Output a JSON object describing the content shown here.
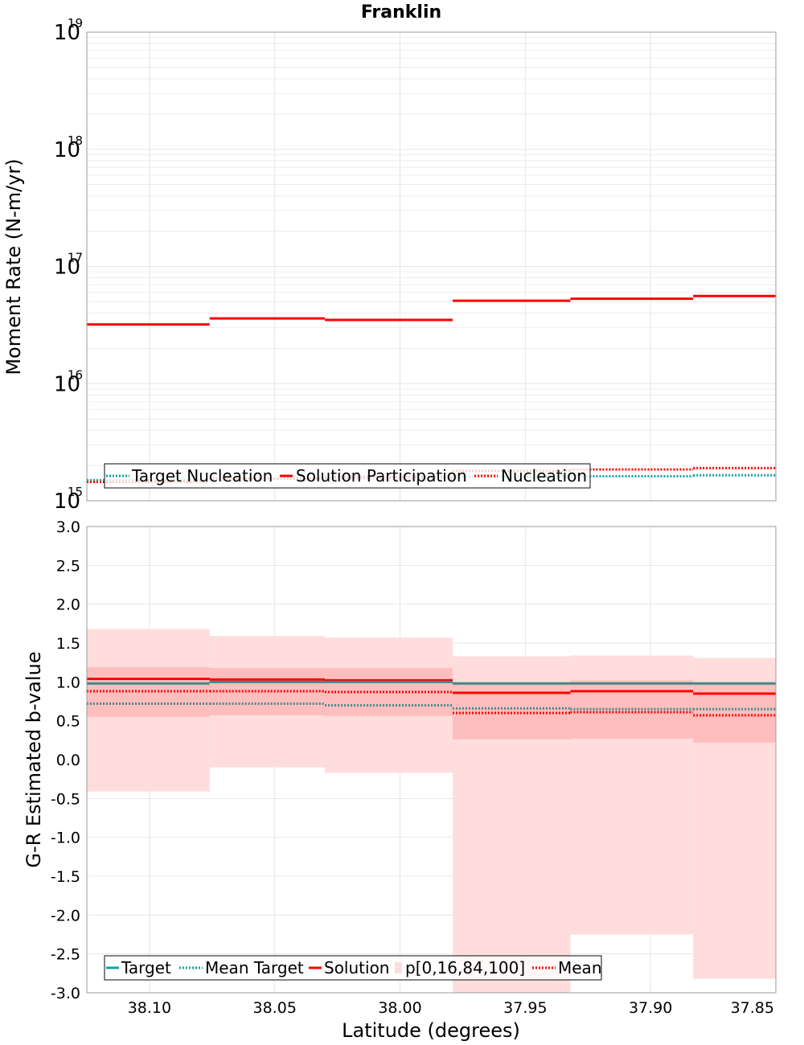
{
  "colors": {
    "target": "#14a0a0",
    "target_line": "#3f8a8a",
    "solution": "#ff0000",
    "band_outer": "#ffdddd",
    "band_inner": "#ffbebe",
    "grid": "#e6e6e6"
  },
  "chart_data": [
    {
      "type": "line",
      "title": "Franklin",
      "ylabel": "Moment Rate (N-m/yr)",
      "yscale": "log",
      "ylim": [
        1000000000000000.0,
        1e+19
      ],
      "xlim": [
        38.125,
        37.85
      ],
      "ytick_bases": [
        "10",
        "10",
        "10",
        "10",
        "10"
      ],
      "ytick_exps": [
        "15",
        "16",
        "17",
        "18",
        "19"
      ],
      "x_edges": [
        38.125,
        38.076,
        38.03,
        37.979,
        37.932,
        37.883,
        37.85
      ],
      "series": [
        {
          "name": "Solution Participation",
          "values": [
            3.2e+16,
            3.6e+16,
            3.5e+16,
            5.1e+16,
            5.3e+16,
            5.6e+16
          ]
        },
        {
          "name": "Nucleation",
          "values": [
            1450000000000000.0,
            1550000000000000.0,
            1600000000000000.0,
            1800000000000000.0,
            1850000000000000.0,
            1900000000000000.0
          ]
        },
        {
          "name": "Target Nucleation",
          "values": [
            1500000000000000.0,
            1550000000000000.0,
            1550000000000000.0,
            1600000000000000.0,
            1620000000000000.0,
            1650000000000000.0
          ]
        }
      ],
      "legend": [
        "Target Nucleation",
        "Solution Participation",
        "Nucleation"
      ]
    },
    {
      "type": "line",
      "ylabel": "G-R Estimated b-value",
      "xlabel": "Latitude (degrees)",
      "ylim": [
        -3.0,
        3.0
      ],
      "yticks": [
        "3.0",
        "2.5",
        "2.0",
        "1.5",
        "1.0",
        "0.5",
        "0.0",
        "-0.5",
        "-1.0",
        "-1.5",
        "-2.0",
        "-2.5",
        "-3.0"
      ],
      "xticks": [
        "38.10",
        "38.05",
        "38.00",
        "37.95",
        "37.90",
        "37.85"
      ],
      "x_edges": [
        38.125,
        38.076,
        38.03,
        37.979,
        37.932,
        37.883,
        37.85
      ],
      "series": [
        {
          "name": "Target",
          "values": [
            0.98,
            1.0,
            1.0,
            0.98,
            0.98,
            0.98
          ]
        },
        {
          "name": "Mean Target",
          "values": [
            0.72,
            0.72,
            0.7,
            0.66,
            0.65,
            0.65
          ]
        },
        {
          "name": "Solution",
          "values": [
            1.04,
            1.03,
            1.02,
            0.86,
            0.88,
            0.85
          ]
        },
        {
          "name": "Mean",
          "values": [
            0.88,
            0.88,
            0.87,
            0.6,
            0.61,
            0.57
          ]
        }
      ],
      "bands": {
        "name": "p[0,16,84,100]",
        "p0": [
          -0.41,
          -0.1,
          -0.17,
          -3.0,
          -2.25,
          -2.82
        ],
        "p16": [
          0.55,
          0.57,
          0.56,
          0.26,
          0.27,
          0.22
        ],
        "p84": [
          1.19,
          1.18,
          1.18,
          1.0,
          1.02,
          1.0
        ],
        "p100": [
          1.68,
          1.59,
          1.57,
          1.33,
          1.34,
          1.31
        ]
      },
      "legend": [
        "Target",
        "Mean Target",
        "Solution",
        "p[0,16,84,100]",
        "Mean"
      ]
    }
  ]
}
